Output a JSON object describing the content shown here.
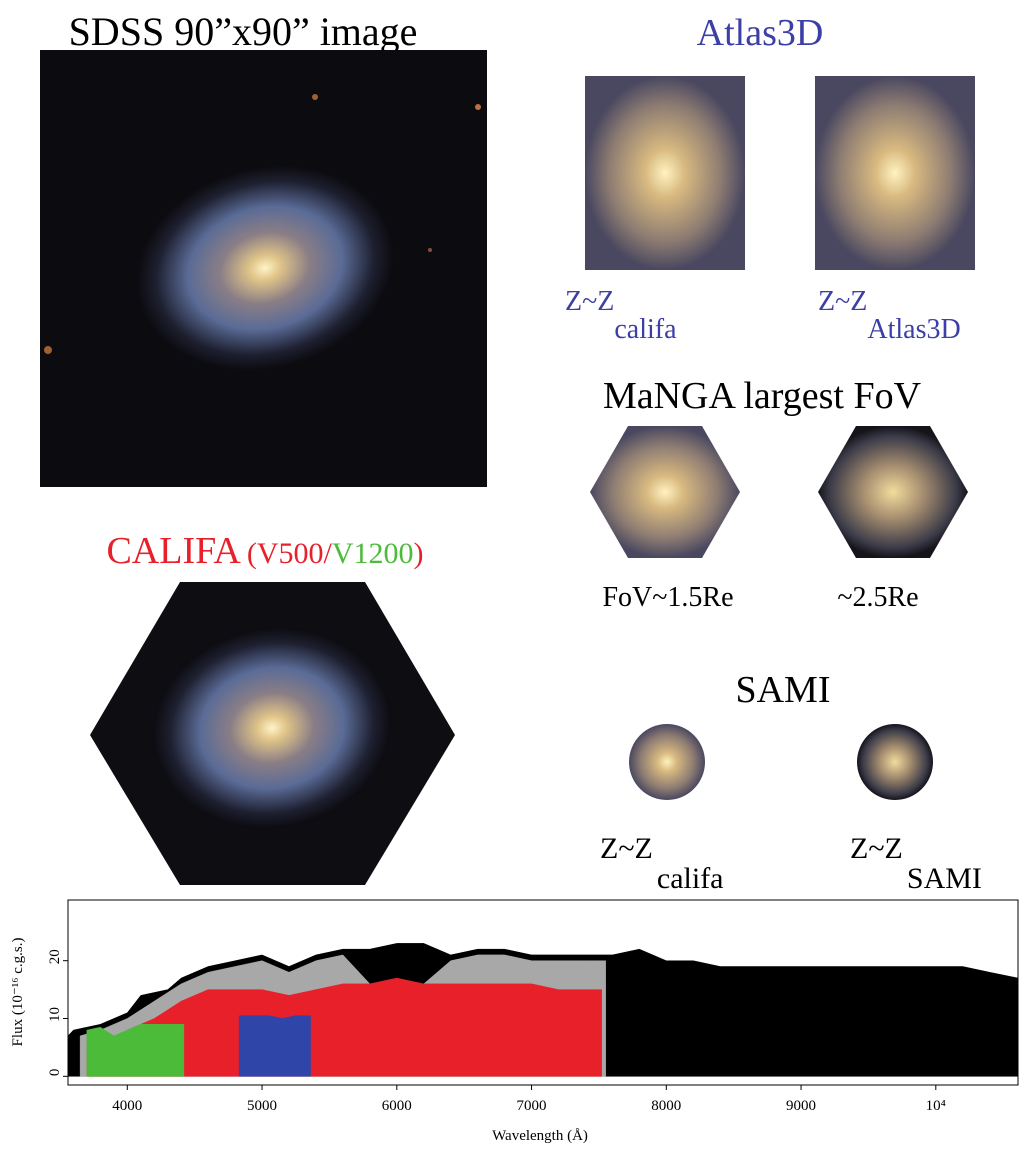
{
  "sdss": {
    "title": "SDSS 90”x90” image"
  },
  "atlas3d": {
    "title": "Atlas3D",
    "captions": [
      {
        "text": "Z~Z",
        "subscript": "califa"
      },
      {
        "text": "Z~Z",
        "subscript": "Atlas3D"
      }
    ]
  },
  "manga": {
    "title": "MaNGA largest FoV",
    "captions": [
      "FoV~1.5Re",
      "~2.5Re"
    ]
  },
  "califa": {
    "title": "CALIFA",
    "setup_open": "(V500/",
    "setup_v1200": "V1200",
    "setup_close": ")"
  },
  "sami": {
    "title": "SAMI",
    "captions": [
      {
        "text": "Z~Z",
        "subscript": "califa"
      },
      {
        "text": "Z~Z",
        "subscript": "SAMI"
      }
    ]
  },
  "chart_data": {
    "type": "area",
    "x_label": "Wavelength (Å)",
    "y_label": "Flux (10⁻¹⁶ c.g.s.)",
    "xlim": [
      3560,
      10610
    ],
    "ylim": [
      -1.5,
      30.5
    ],
    "xticks": [
      4000,
      5000,
      6000,
      7000,
      8000,
      9000,
      {
        "value": 10000,
        "label": "10⁴"
      }
    ],
    "yticks": [
      0,
      10,
      20
    ],
    "series": [
      {
        "color": "#000000",
        "x": [
          3560,
          3600,
          3800,
          4000,
          4100,
          4300,
          4400,
          4600,
          4800,
          5000,
          5200,
          5400,
          5600,
          5800,
          6000,
          6200,
          6400,
          6600,
          6800,
          7000,
          7200,
          7400,
          7600,
          7800,
          8000,
          8200,
          8400,
          8600,
          8800,
          9000,
          9200,
          9400,
          9600,
          9800,
          10000,
          10200,
          10400,
          10610
        ],
        "values": [
          7,
          8,
          9,
          11,
          14,
          15,
          17,
          19,
          20,
          21,
          19,
          21,
          22,
          22,
          23,
          23,
          21,
          22,
          22,
          21,
          21,
          21,
          21,
          22,
          20,
          20,
          19,
          19,
          19,
          19,
          19,
          19,
          19,
          19,
          19,
          19,
          18,
          17
        ]
      },
      {
        "color": "#a8a8a8",
        "x": [
          3650,
          3800,
          4000,
          4200,
          4400,
          4600,
          4800,
          5000,
          5200,
          5400,
          5600,
          5800,
          6000,
          6200,
          6400,
          6600,
          6800,
          7000,
          7200,
          7400,
          7550
        ],
        "values": [
          7,
          8,
          10,
          13,
          16,
          18,
          19,
          20,
          18,
          20,
          21,
          16,
          16,
          16,
          20,
          21,
          21,
          20,
          20,
          20,
          20
        ]
      },
      {
        "color": "#e8202a",
        "x": [
          3700,
          3900,
          4000,
          4200,
          4400,
          4600,
          4800,
          5000,
          5200,
          5400,
          5600,
          5800,
          6000,
          6200,
          6400,
          6600,
          6800,
          7000,
          7200,
          7400,
          7520
        ],
        "values": [
          6,
          6,
          8,
          10,
          13,
          15,
          15,
          15,
          14,
          15,
          16,
          16,
          17,
          16,
          16,
          16,
          16,
          16,
          15,
          15,
          15
        ]
      },
      {
        "color": "#4cbb3a",
        "x": [
          3700,
          3800,
          3900,
          4000,
          4100,
          4200,
          4300,
          4420
        ],
        "values": [
          8,
          8.5,
          7,
          8,
          9,
          9,
          9,
          9
        ]
      },
      {
        "color": "#2f45a8",
        "x": [
          4830,
          4950,
          5050,
          5150,
          5250,
          5360
        ],
        "values": [
          10.5,
          10.5,
          10.5,
          10,
          10.5,
          10.5
        ]
      }
    ]
  }
}
